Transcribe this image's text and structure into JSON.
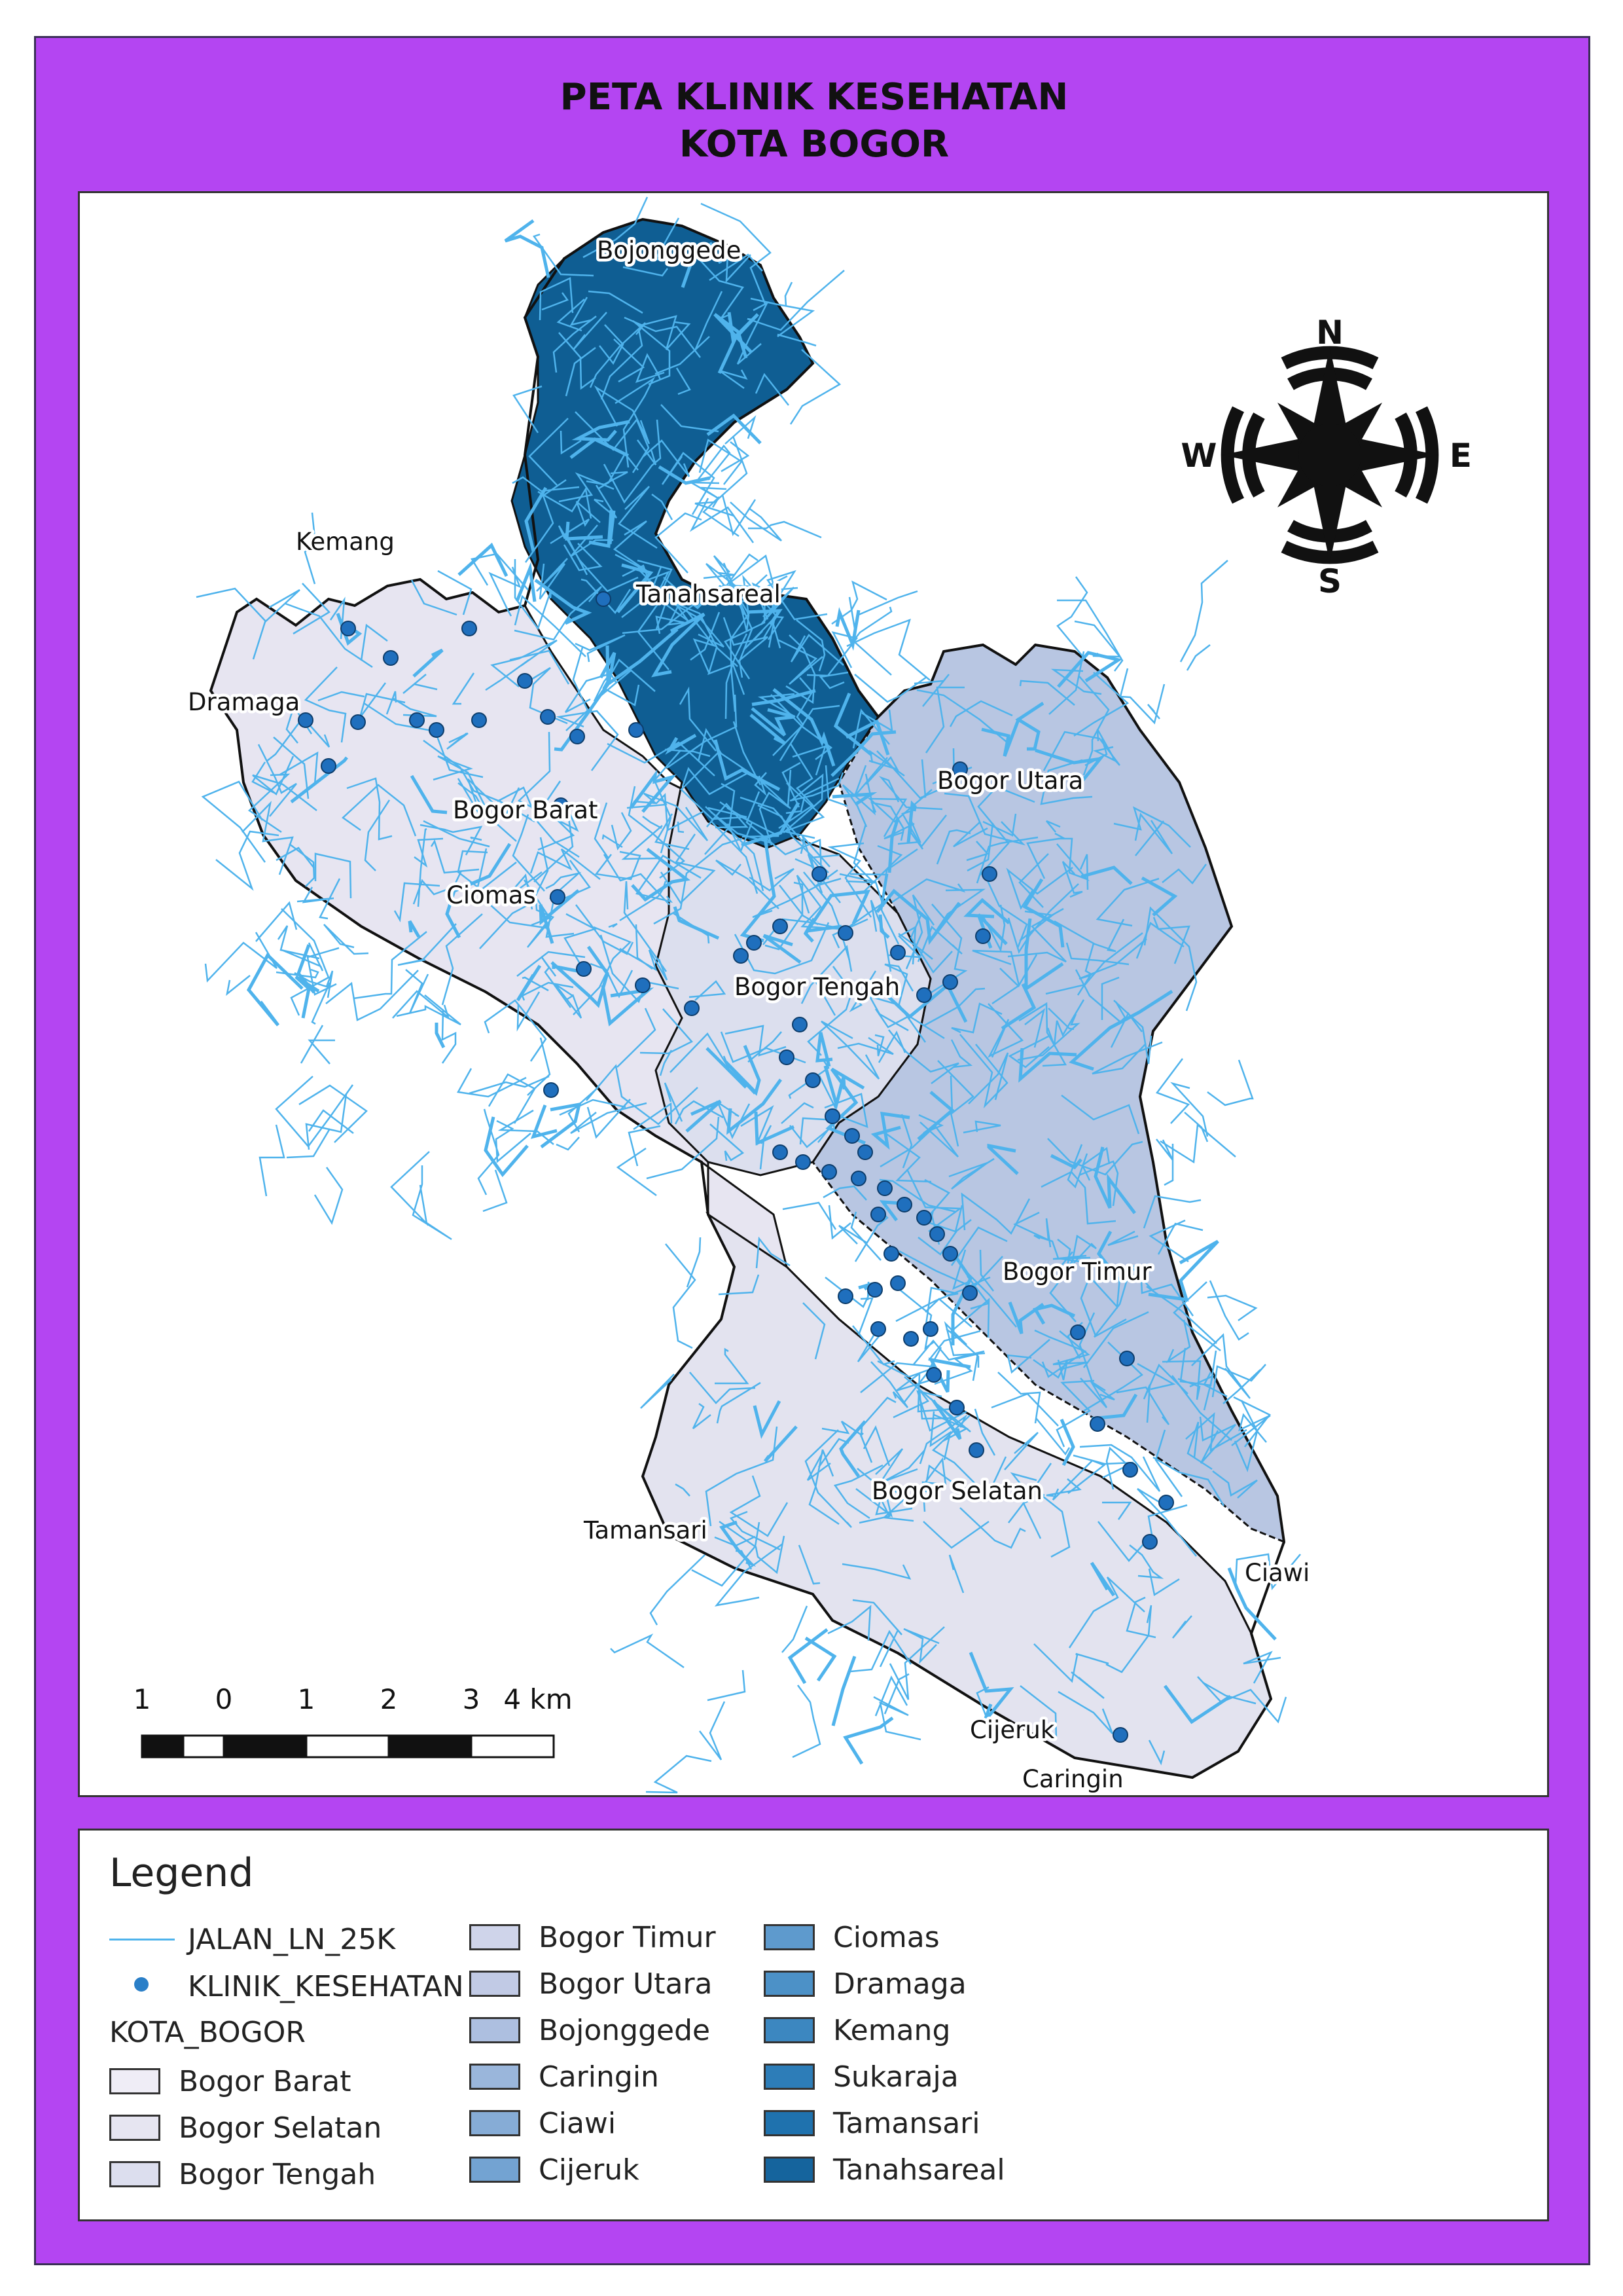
{
  "title": {
    "line1": "PETA  KLINIK KESEHATAN",
    "line2": "KOTA BOGOR"
  },
  "colors": {
    "frame": "#b445f2",
    "road": "#4fb3ec",
    "clinic": "#1f6fbd",
    "north_region": "#0f5e93",
    "west_region": "#e6e3f1",
    "east_region": "#b8c6e2",
    "boundary": "#111111"
  },
  "map": {
    "place_labels": [
      "Bojonggede",
      "Tanahsareal",
      "Kemang",
      "Dramaga",
      "Bogor Barat",
      "Ciomas",
      "Bogor Utara",
      "Bogor Tengah",
      "Bogor Timur",
      "Bogor Selatan",
      "Tamansari",
      "Ciawi",
      "Cijeruk",
      "Caringin"
    ],
    "compass": {
      "n": "N",
      "s": "S",
      "e": "E",
      "w": "W",
      "icon": "compass-rose-icon"
    },
    "scale_bar": {
      "ticks": [
        "1",
        "0",
        "1",
        "2",
        "3",
        "4 km"
      ]
    }
  },
  "legend": {
    "title": "Legend",
    "road_layer": "JALAN_LN_25K",
    "clinic_layer": "KLINIK_KESEHATAN",
    "district_layer": "KOTA_BOGOR",
    "classes": [
      {
        "label": "Bogor Barat",
        "color": "#efedf6"
      },
      {
        "label": "Bogor Selatan",
        "color": "#e6e5f1"
      },
      {
        "label": "Bogor Tengah",
        "color": "#dcdeee"
      },
      {
        "label": "Bogor Timur",
        "color": "#cfd4ea"
      },
      {
        "label": "Bogor Utara",
        "color": "#c1cae5"
      },
      {
        "label": "Bojonggede",
        "color": "#adbfe0"
      },
      {
        "label": "Caringin",
        "color": "#9ab6db"
      },
      {
        "label": "Ciawi",
        "color": "#86acd6"
      },
      {
        "label": "Cijeruk",
        "color": "#73a3d2"
      },
      {
        "label": "Ciomas",
        "color": "#5e9acd"
      },
      {
        "label": "Dramaga",
        "color": "#4c91c7"
      },
      {
        "label": "Kemang",
        "color": "#3c87c0"
      },
      {
        "label": "Sukaraja",
        "color": "#2d7db8"
      },
      {
        "label": "Tamansari",
        "color": "#1f72ae"
      },
      {
        "label": "Tanahsareal",
        "color": "#15649d"
      }
    ]
  }
}
